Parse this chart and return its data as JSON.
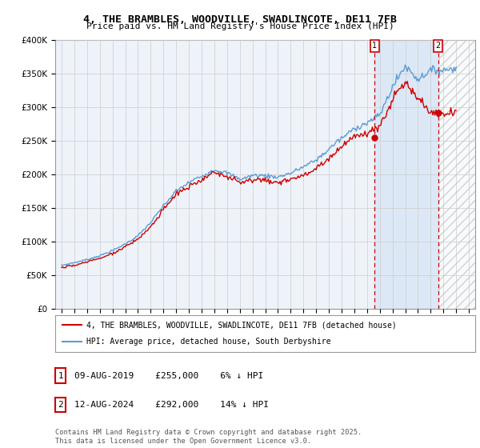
{
  "title": "4, THE BRAMBLES, WOODVILLE, SWADLINCOTE, DE11 7FB",
  "subtitle": "Price paid vs. HM Land Registry's House Price Index (HPI)",
  "hpi_color": "#5b9bd5",
  "price_color": "#cc0000",
  "sale1_info": "09-AUG-2019    £255,000    6% ↓ HPI",
  "sale2_info": "12-AUG-2024    £292,000    14% ↓ HPI",
  "legend_line1": "4, THE BRAMBLES, WOODVILLE, SWADLINCOTE, DE11 7FB (detached house)",
  "legend_line2": "HPI: Average price, detached house, South Derbyshire",
  "footer": "Contains HM Land Registry data © Crown copyright and database right 2025.\nThis data is licensed under the Open Government Licence v3.0.",
  "background_color": "#ffffff",
  "plot_bg_color": "#eef3fa",
  "grid_color": "#cccccc",
  "sale1_x": 2019.6,
  "sale1_y": 255000,
  "sale2_x": 2024.6,
  "sale2_y": 292000,
  "ylim": [
    0,
    400000
  ],
  "xlim_start": 1994.5,
  "xlim_end": 2027.5,
  "future_start": 2024.6,
  "shade_start": 2019.6,
  "shade_end": 2024.6
}
